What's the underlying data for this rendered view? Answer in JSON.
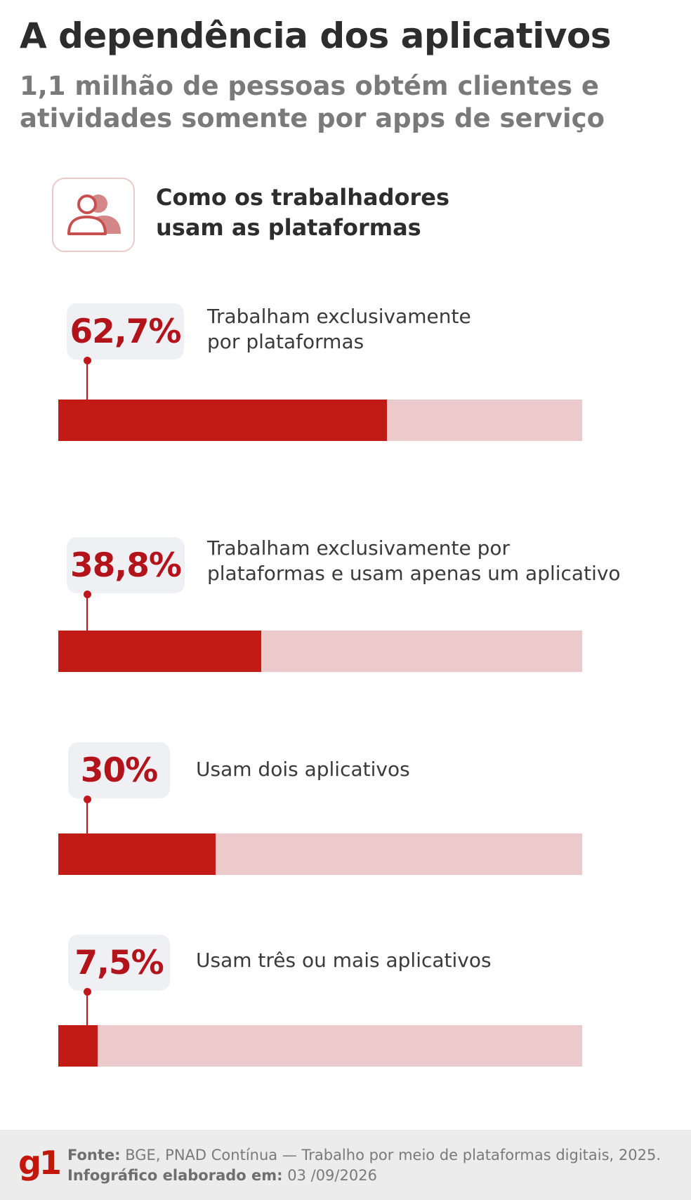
{
  "header": {
    "title": "A dependência dos aplicativos",
    "subtitle": "1,1 milhão de pessoas obtém clientes e atividades somente por apps de serviço"
  },
  "section": {
    "icon": "people-icon",
    "title_line1": "Como os trabalhadores",
    "title_line2": "usam as plataformas"
  },
  "chart_data": {
    "type": "bar",
    "orientation": "horizontal",
    "title": "Como os trabalhadores usam as plataformas",
    "unit": "%",
    "xlim": [
      0,
      100
    ],
    "categories": [
      "Trabalham exclusivamente por plataformas",
      "Trabalham exclusivamente por plataformas e usam apenas um aplicativo",
      "Usam dois aplicativos",
      "Usam três ou mais aplicativos"
    ],
    "values": [
      62.7,
      38.8,
      30,
      7.5
    ],
    "value_labels": [
      "62,7%",
      "38,8%",
      "30%",
      "7,5%"
    ],
    "label_lines": [
      [
        "Trabalham exclusivamente",
        "por plataformas"
      ],
      [
        "Trabalham exclusivamente por",
        "plataformas e usam apenas um aplicativo"
      ],
      [
        "Usam dois aplicativos"
      ],
      [
        "Usam três ou mais aplicativos"
      ]
    ],
    "colors": {
      "fill": "#c21a14",
      "track": "#ecc9ca",
      "value_text": "#b3141b"
    }
  },
  "footer": {
    "logo": "g1",
    "source_label": "Fonte:",
    "source_text": "BGE, PNAD Contínua — Trabalho por meio de plataformas digitais, 2025.",
    "date_label": "Infográfico elaborado em:",
    "date_text": "03 /09/2026"
  }
}
